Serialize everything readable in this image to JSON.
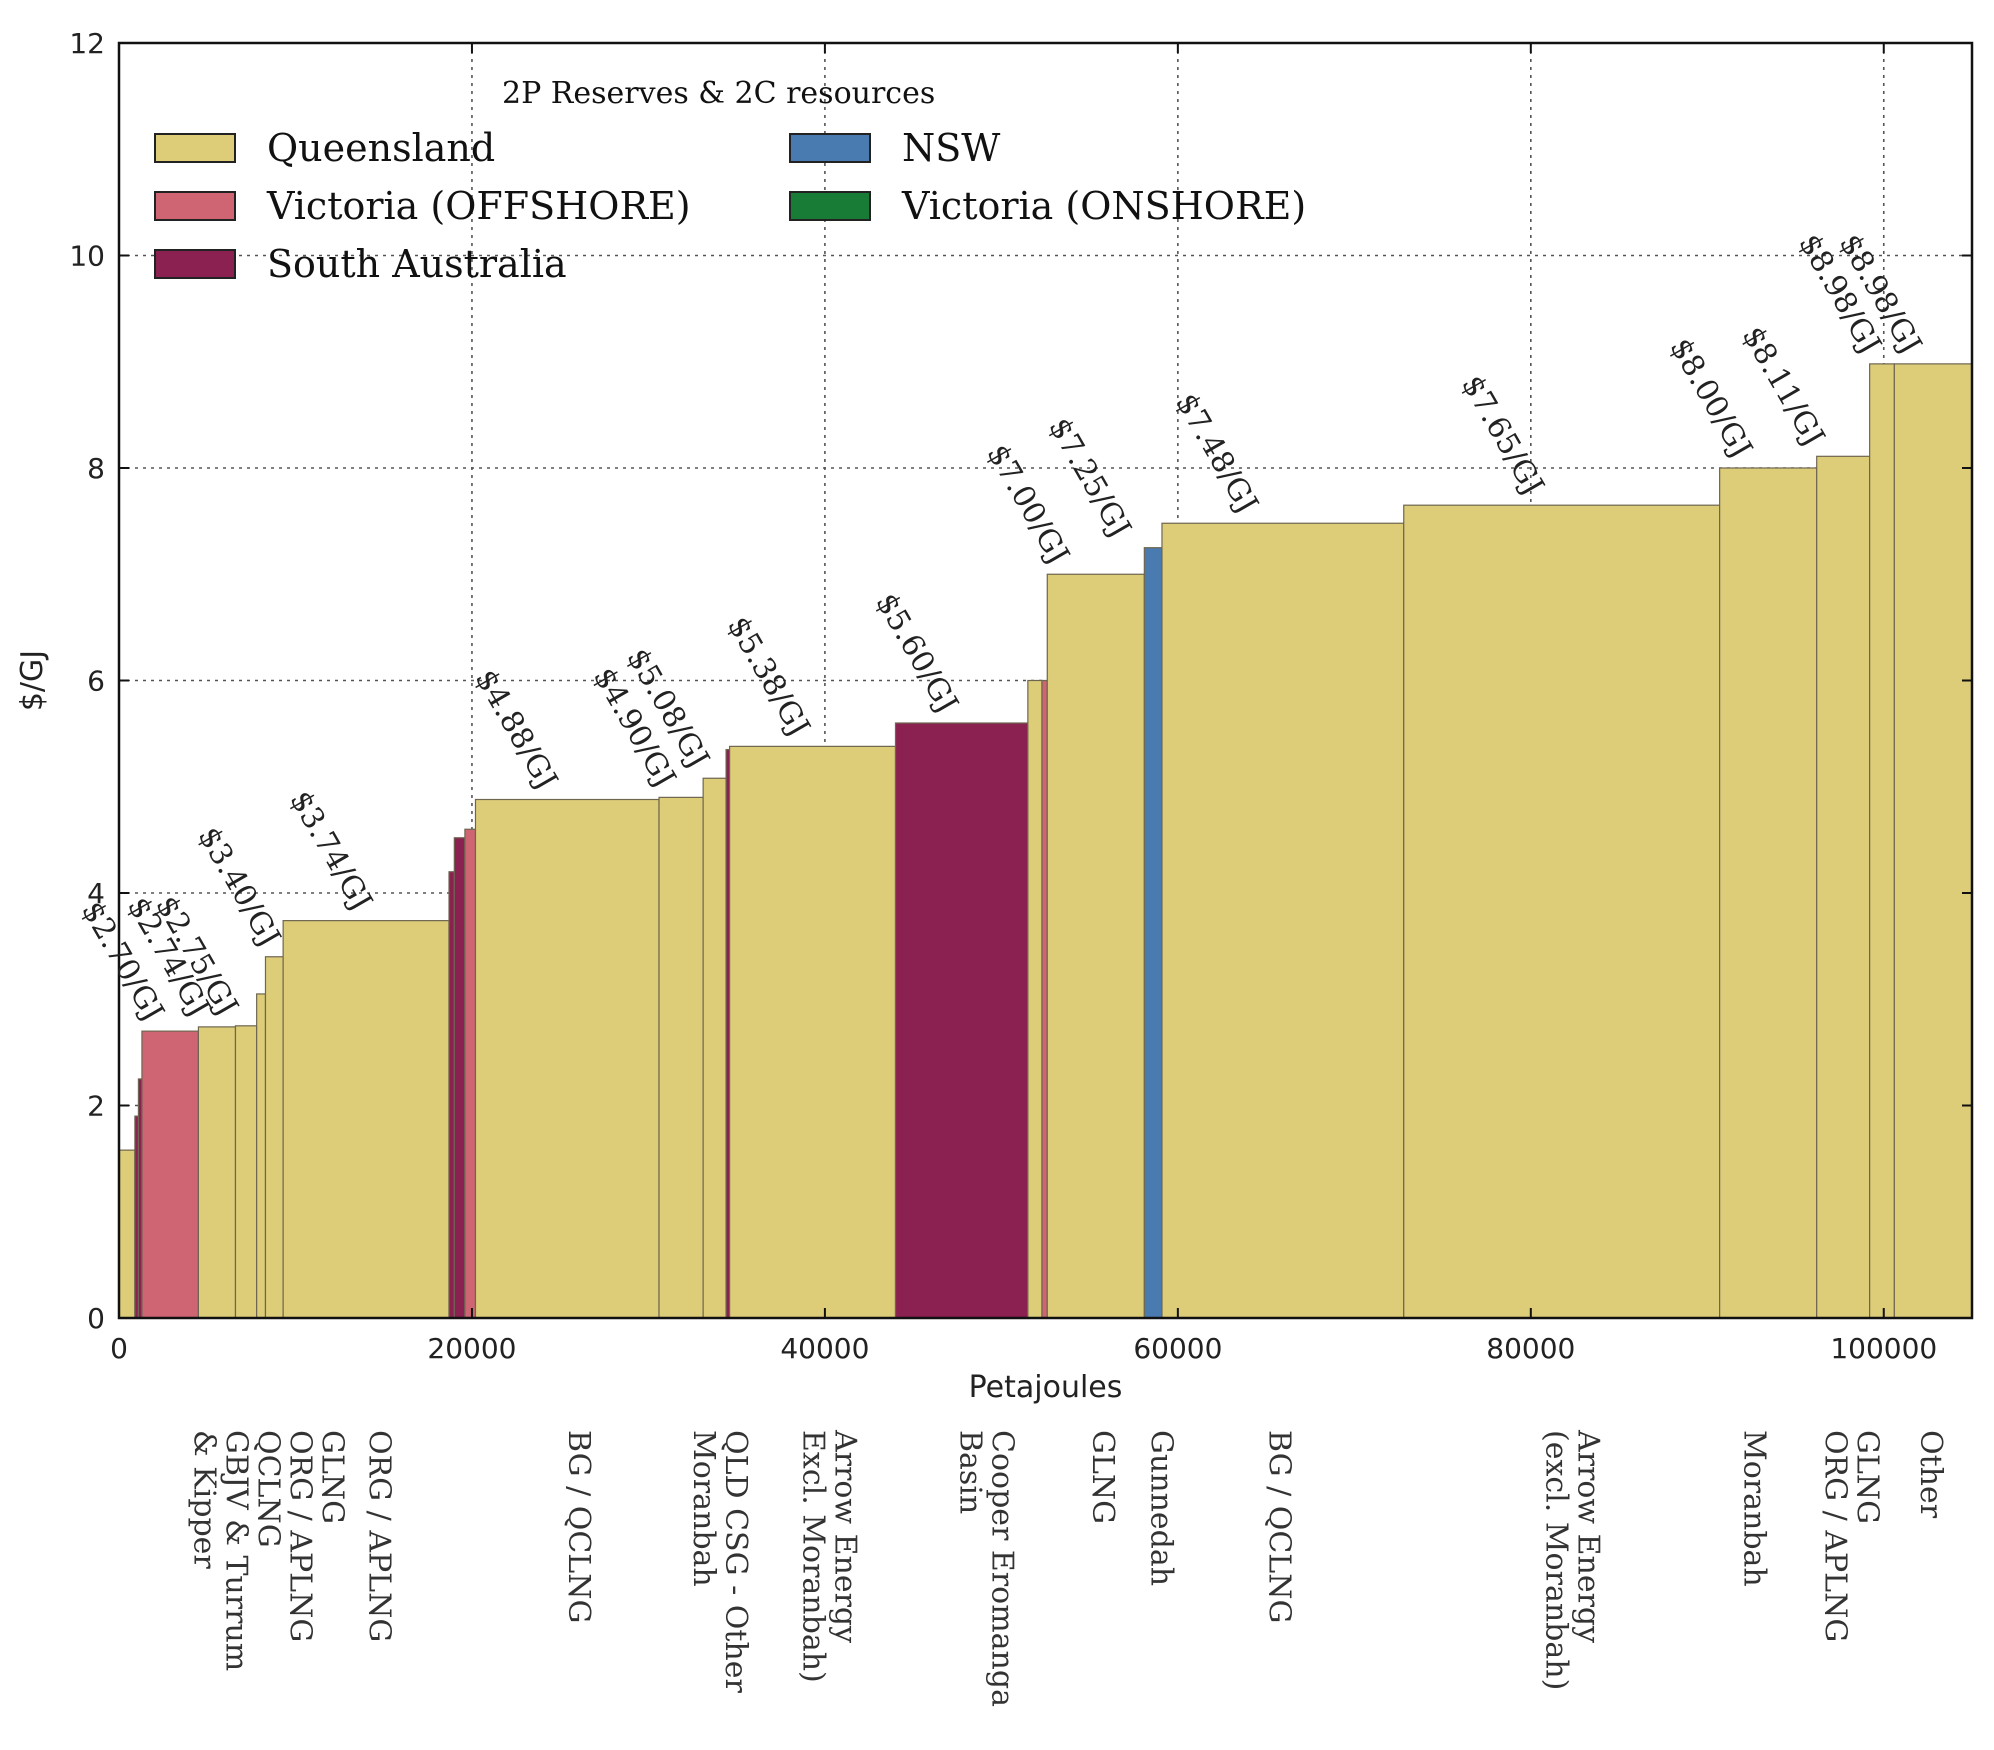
{
  "chart_data": {
    "type": "bar",
    "subtype": "variable-width supply curve",
    "xlabel": "Petajoules",
    "ylabel": "$/GJ",
    "xlim": [
      0,
      105000
    ],
    "ylim": [
      0,
      12
    ],
    "grid": true,
    "x_ticks": [
      "0",
      "20000",
      "40000",
      "60000",
      "80000",
      "100000"
    ],
    "y_ticks": [
      "0",
      "2",
      "4",
      "6",
      "8",
      "10",
      "12"
    ],
    "legend": {
      "title": "2P Reserves & 2C resources",
      "placement": "top-left",
      "entries": [
        {
          "label": "Queensland",
          "color": "#ddcd78"
        },
        {
          "label": "NSW",
          "color": "#4a7bb0"
        },
        {
          "label": "Victoria (OFFSHORE)",
          "color": "#cf6473"
        },
        {
          "label": "Victoria (ONSHORE)",
          "color": "#187b36"
        },
        {
          "label": "South Australia",
          "color": "#8a2150"
        }
      ]
    },
    "colors": {
      "Queensland": "#ddcd78",
      "NSW": "#4a7bb0",
      "Victoria (OFFSHORE)": "#cf6473",
      "Victoria (ONSHORE)": "#187b36",
      "South Australia": "#8a2150",
      "edge": "#6e6650"
    },
    "segments": [
      {
        "x0": 0,
        "x1": 900,
        "value": 1.58,
        "region": "Queensland"
      },
      {
        "x0": 900,
        "x2": 0,
        "x1": 1100,
        "value": 1.9,
        "region": "South Australia"
      },
      {
        "x0": 1100,
        "x1": 1300,
        "value": 2.25,
        "region": "South Australia"
      },
      {
        "x0": 1300,
        "x1": 4500,
        "value": 2.7,
        "region": "Victoria (OFFSHORE)"
      },
      {
        "x0": 4500,
        "x1": 6600,
        "value": 2.74,
        "region": "Queensland"
      },
      {
        "x0": 6600,
        "x1": 7800,
        "value": 2.75,
        "region": "Queensland"
      },
      {
        "x0": 7800,
        "x1": 8300,
        "value": 3.05,
        "region": "Queensland"
      },
      {
        "x0": 8300,
        "x1": 9300,
        "value": 3.4,
        "region": "Queensland"
      },
      {
        "x0": 9300,
        "x1": 18700,
        "value": 3.74,
        "region": "Queensland"
      },
      {
        "x0": 18700,
        "x1": 19000,
        "value": 4.2,
        "region": "South Australia"
      },
      {
        "x0": 19000,
        "x1": 19600,
        "value": 4.52,
        "region": "South Australia"
      },
      {
        "x0": 19600,
        "x1": 20200,
        "value": 4.6,
        "region": "Victoria (OFFSHORE)"
      },
      {
        "x0": 20200,
        "x1": 30600,
        "value": 4.88,
        "region": "Queensland"
      },
      {
        "x0": 30600,
        "x1": 33100,
        "value": 4.9,
        "region": "Queensland"
      },
      {
        "x0": 33100,
        "x1": 34400,
        "value": 5.08,
        "region": "Queensland"
      },
      {
        "x0": 34400,
        "x1": 34600,
        "value": 5.35,
        "region": "South Australia"
      },
      {
        "x0": 34600,
        "x1": 44000,
        "value": 5.38,
        "region": "Queensland"
      },
      {
        "x0": 44000,
        "x1": 51500,
        "value": 5.6,
        "region": "South Australia"
      },
      {
        "x0": 51500,
        "x1": 52300,
        "value": 6.0,
        "region": "Queensland"
      },
      {
        "x0": 52300,
        "x1": 52600,
        "value": 6.0,
        "region": "Victoria (OFFSHORE)"
      },
      {
        "x0": 52600,
        "x1": 58100,
        "value": 7.0,
        "region": "Queensland"
      },
      {
        "x0": 58100,
        "x1": 59100,
        "value": 7.25,
        "region": "NSW"
      },
      {
        "x0": 59100,
        "x1": 72800,
        "value": 7.48,
        "region": "Queensland"
      },
      {
        "x0": 72800,
        "x1": 90700,
        "value": 7.65,
        "region": "Queensland"
      },
      {
        "x0": 90700,
        "x1": 96200,
        "value": 8.0,
        "region": "Queensland"
      },
      {
        "x0": 96200,
        "x1": 99200,
        "value": 8.11,
        "region": "Queensland"
      },
      {
        "x0": 99200,
        "x1": 100600,
        "value": 8.98,
        "region": "Queensland"
      },
      {
        "x0": 100600,
        "x1": 105000,
        "value": 8.98,
        "region": "Queensland"
      }
    ],
    "price_labels": [
      {
        "text": "$2.70/GJ",
        "x": 1600,
        "value": 2.7
      },
      {
        "text": "$2.74/GJ",
        "x": 4200,
        "value": 2.74
      },
      {
        "text": "$2.75/GJ",
        "x": 5800,
        "value": 2.75
      },
      {
        "text": "$3.40/GJ",
        "x": 8200,
        "value": 3.4
      },
      {
        "text": "$3.74/GJ",
        "x": 13400,
        "value": 3.74
      },
      {
        "text": "$4.88/GJ",
        "x": 23900,
        "value": 4.88
      },
      {
        "text": "$4.90/GJ",
        "x": 30600,
        "value": 4.9
      },
      {
        "text": "$5.08/GJ",
        "x": 32500,
        "value": 5.08
      },
      {
        "text": "$5.38/GJ",
        "x": 38200,
        "value": 5.38
      },
      {
        "text": "$5.60/GJ",
        "x": 46600,
        "value": 5.6
      },
      {
        "text": "$7.00/GJ",
        "x": 52900,
        "value": 7.0
      },
      {
        "text": "$7.25/GJ",
        "x": 56400,
        "value": 7.25
      },
      {
        "text": "$7.48/GJ",
        "x": 63600,
        "value": 7.48
      },
      {
        "text": "$7.65/GJ",
        "x": 79800,
        "value": 7.65
      },
      {
        "text": "$8.00/GJ",
        "x": 91600,
        "value": 8.0
      },
      {
        "text": "$8.11/GJ",
        "x": 95700,
        "value": 8.11
      },
      {
        "text": "$8.98/GJ",
        "x": 98900,
        "value": 8.98
      },
      {
        "text": "$8.98/GJ",
        "x": 101200,
        "value": 8.98
      }
    ],
    "category_labels": [
      {
        "lines": [
          "GLNG",
          "ORG / APLNG",
          "QCLNG",
          "GBJV & Turrum",
          "& Kipper"
        ],
        "x": 7900
      },
      {
        "lines": [
          "ORG / APLNG"
        ],
        "x": 14200
      },
      {
        "lines": [
          "BG / QCLNG"
        ],
        "x": 25500
      },
      {
        "lines": [
          "QLD CSG - Other",
          "Moranbah"
        ],
        "x": 33500
      },
      {
        "lines": [
          "Arrow Energy",
          "Excl. Moranbah)"
        ],
        "x": 39700
      },
      {
        "lines": [
          "Cooper Eromanga",
          "Basin"
        ],
        "x": 48600
      },
      {
        "lines": [
          "GLNG"
        ],
        "x": 55200
      },
      {
        "lines": [
          "Gunnedah"
        ],
        "x": 58500
      },
      {
        "lines": [
          "BG / QCLNG"
        ],
        "x": 65200
      },
      {
        "lines": [
          "Arrow Energy",
          "(excl. Moranbah)"
        ],
        "x": 81800
      },
      {
        "lines": [
          "Moranbah"
        ],
        "x": 92100
      },
      {
        "lines": [
          "GLNG",
          "ORG / APLNG"
        ],
        "x": 97600
      },
      {
        "lines": [
          "Other"
        ],
        "x": 102100
      }
    ]
  }
}
